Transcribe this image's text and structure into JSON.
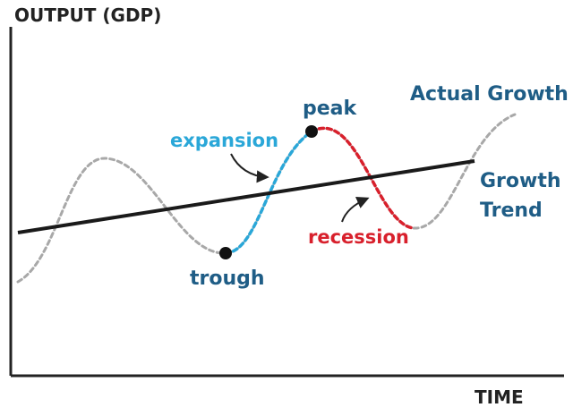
{
  "axes": {
    "y_label": "OUTPUT (GDP)",
    "x_label": "TIME"
  },
  "labels": {
    "actual_growth": "Actual Growth",
    "growth_trend_line1": "Growth",
    "growth_trend_line2": "Trend",
    "peak": "peak",
    "trough": "trough",
    "expansion": "expansion",
    "recession": "recession"
  },
  "colors": {
    "axis": "#222222",
    "trend_line": "#1a1a1a",
    "actual_growth_curve": "#a8a8a8",
    "expansion": "#2aa7d8",
    "recession": "#d8202c",
    "label_text": "#1f5d86",
    "point": "#111111"
  }
}
